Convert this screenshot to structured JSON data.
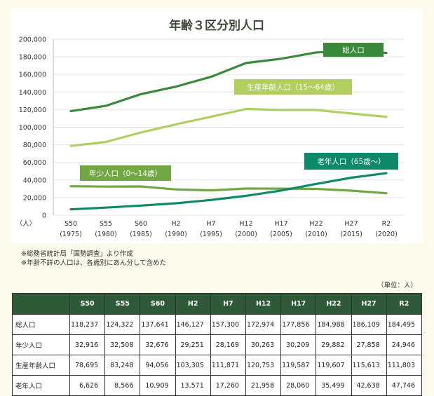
{
  "chart_data": {
    "type": "line",
    "title": "年齢３区分別人口",
    "y_unit": "（人）",
    "ylim": [
      0,
      200000
    ],
    "yticks": [
      "0",
      "20,000",
      "40,000",
      "60,000",
      "80,000",
      "100,000",
      "120,000",
      "140,000",
      "160,000",
      "180,000",
      "200,000"
    ],
    "categories": [
      "S50",
      "S55",
      "S60",
      "H2",
      "H7",
      "H12",
      "H17",
      "H22",
      "H27",
      "R2"
    ],
    "years": [
      "(1975)",
      "(1980)",
      "(1985)",
      "(1990)",
      "(1995)",
      "(2000)",
      "(2005)",
      "(2010)",
      "(2015)",
      "(2020)"
    ],
    "series": [
      {
        "name": "総人口",
        "color": "#3a8a3c",
        "values": [
          118237,
          124322,
          137641,
          146127,
          157300,
          172974,
          177856,
          184988,
          186109,
          184495
        ]
      },
      {
        "name": "生産年齢人口（15～64歳）",
        "color": "#b0cf5e",
        "values": [
          78695,
          83248,
          94056,
          103305,
          111871,
          120753,
          119587,
          119607,
          115613,
          111803
        ]
      },
      {
        "name": "年少人口（0～14歳）",
        "color": "#71a844",
        "values": [
          32916,
          32508,
          32676,
          29251,
          28169,
          30263,
          30209,
          29882,
          27858,
          24946
        ]
      },
      {
        "name": "老年人口（65歳～）",
        "color": "#0e8a6a",
        "values": [
          6626,
          8566,
          10909,
          13571,
          17260,
          21958,
          28060,
          35499,
          42638,
          47746
        ]
      }
    ]
  },
  "notes": [
    "※総務省統計局「国勢調査」より作成",
    "※年齢不詳の人口は、各歳別にあん分して含めた"
  ],
  "table": {
    "unit": "（単位：人）",
    "headers": [
      "S50",
      "S55",
      "S60",
      "H2",
      "H7",
      "H12",
      "H17",
      "H22",
      "H27",
      "R2"
    ],
    "rows": [
      {
        "label": "総人口",
        "cells": [
          "118,237",
          "124,322",
          "137,641",
          "146,127",
          "157,300",
          "172,974",
          "177,856",
          "184,988",
          "186,109",
          "184,495"
        ]
      },
      {
        "label": "年少人口",
        "cells": [
          "32,916",
          "32,508",
          "32,676",
          "29,251",
          "28,169",
          "30,263",
          "30,209",
          "29,882",
          "27,858",
          "24,946"
        ]
      },
      {
        "label": "生産年齢人口",
        "cells": [
          "78,695",
          "83,248",
          "94,056",
          "103,305",
          "111,871",
          "120,753",
          "119,587",
          "119,607",
          "115,613",
          "111,803"
        ]
      },
      {
        "label": "老年人口",
        "cells": [
          "6,626",
          "8,566",
          "10,909",
          "13,571",
          "17,260",
          "21,958",
          "28,060",
          "35,499",
          "42,638",
          "47,746"
        ]
      }
    ]
  }
}
